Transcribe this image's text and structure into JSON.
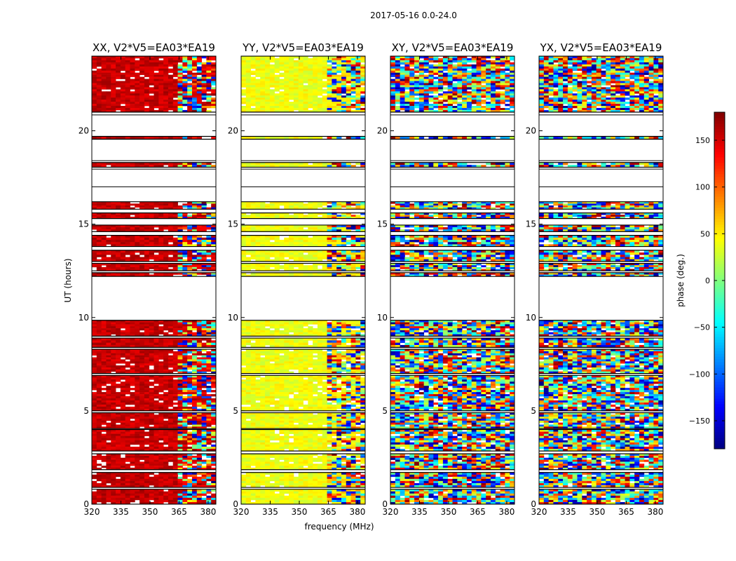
{
  "suptitle": "2017-05-16 0.0-24.0",
  "chart_data": {
    "type": "heatmap",
    "figure_title": "2017-05-16 0.0-24.0",
    "xlabel": "frequency (MHz)",
    "ylabel": "UT (hours)",
    "xlim": [
      320,
      384
    ],
    "ylim": [
      0,
      24
    ],
    "xticks": [
      320,
      335,
      350,
      365,
      380
    ],
    "yticks": [
      0,
      5,
      10,
      15,
      20
    ],
    "colorbar": {
      "label": "phase (deg.)",
      "range": [
        -180,
        180
      ],
      "ticks": [
        -150,
        -100,
        -50,
        0,
        50,
        100,
        150
      ],
      "tick_labels": [
        "−150",
        "−100",
        "−50",
        "0",
        "50",
        "100",
        "150"
      ],
      "colormap": "jet"
    },
    "data_intervals_hours": [
      [
        0,
        0.8
      ],
      [
        0.9,
        1.7
      ],
      [
        1.85,
        2.7
      ],
      [
        2.85,
        4.0
      ],
      [
        4.05,
        4.9
      ],
      [
        5.0,
        6.9
      ],
      [
        7.0,
        8.3
      ],
      [
        8.4,
        8.9
      ],
      [
        9.0,
        9.85
      ],
      [
        12.2,
        12.4
      ],
      [
        12.5,
        12.9
      ],
      [
        13.0,
        13.6
      ],
      [
        13.8,
        14.4
      ],
      [
        14.6,
        14.95
      ],
      [
        15.3,
        15.6
      ],
      [
        15.8,
        16.2
      ],
      [
        18.05,
        18.3
      ],
      [
        19.55,
        19.7
      ],
      [
        21.0,
        24.0
      ]
    ],
    "panels": [
      {
        "name": "XX",
        "title": "XX, V2*V5=EA03*EA19",
        "mean_phase_low_band_deg": 155,
        "mean_phase_high_band_deg": 150,
        "band_split_mhz": 364
      },
      {
        "name": "YY",
        "title": "YY, V2*V5=EA03*EA19",
        "mean_phase_low_band_deg": 40,
        "mean_phase_high_band_deg": 50,
        "band_split_mhz": 364
      },
      {
        "name": "XY",
        "title": "XY, V2*V5=EA03*EA19",
        "mean_phase_low_band_deg": null,
        "mean_phase_high_band_deg": null,
        "band_split_mhz": 364
      },
      {
        "name": "YX",
        "title": "YX, V2*V5=EA03*EA19",
        "mean_phase_low_band_deg": null,
        "mean_phase_high_band_deg": null,
        "band_split_mhz": 364
      }
    ]
  }
}
